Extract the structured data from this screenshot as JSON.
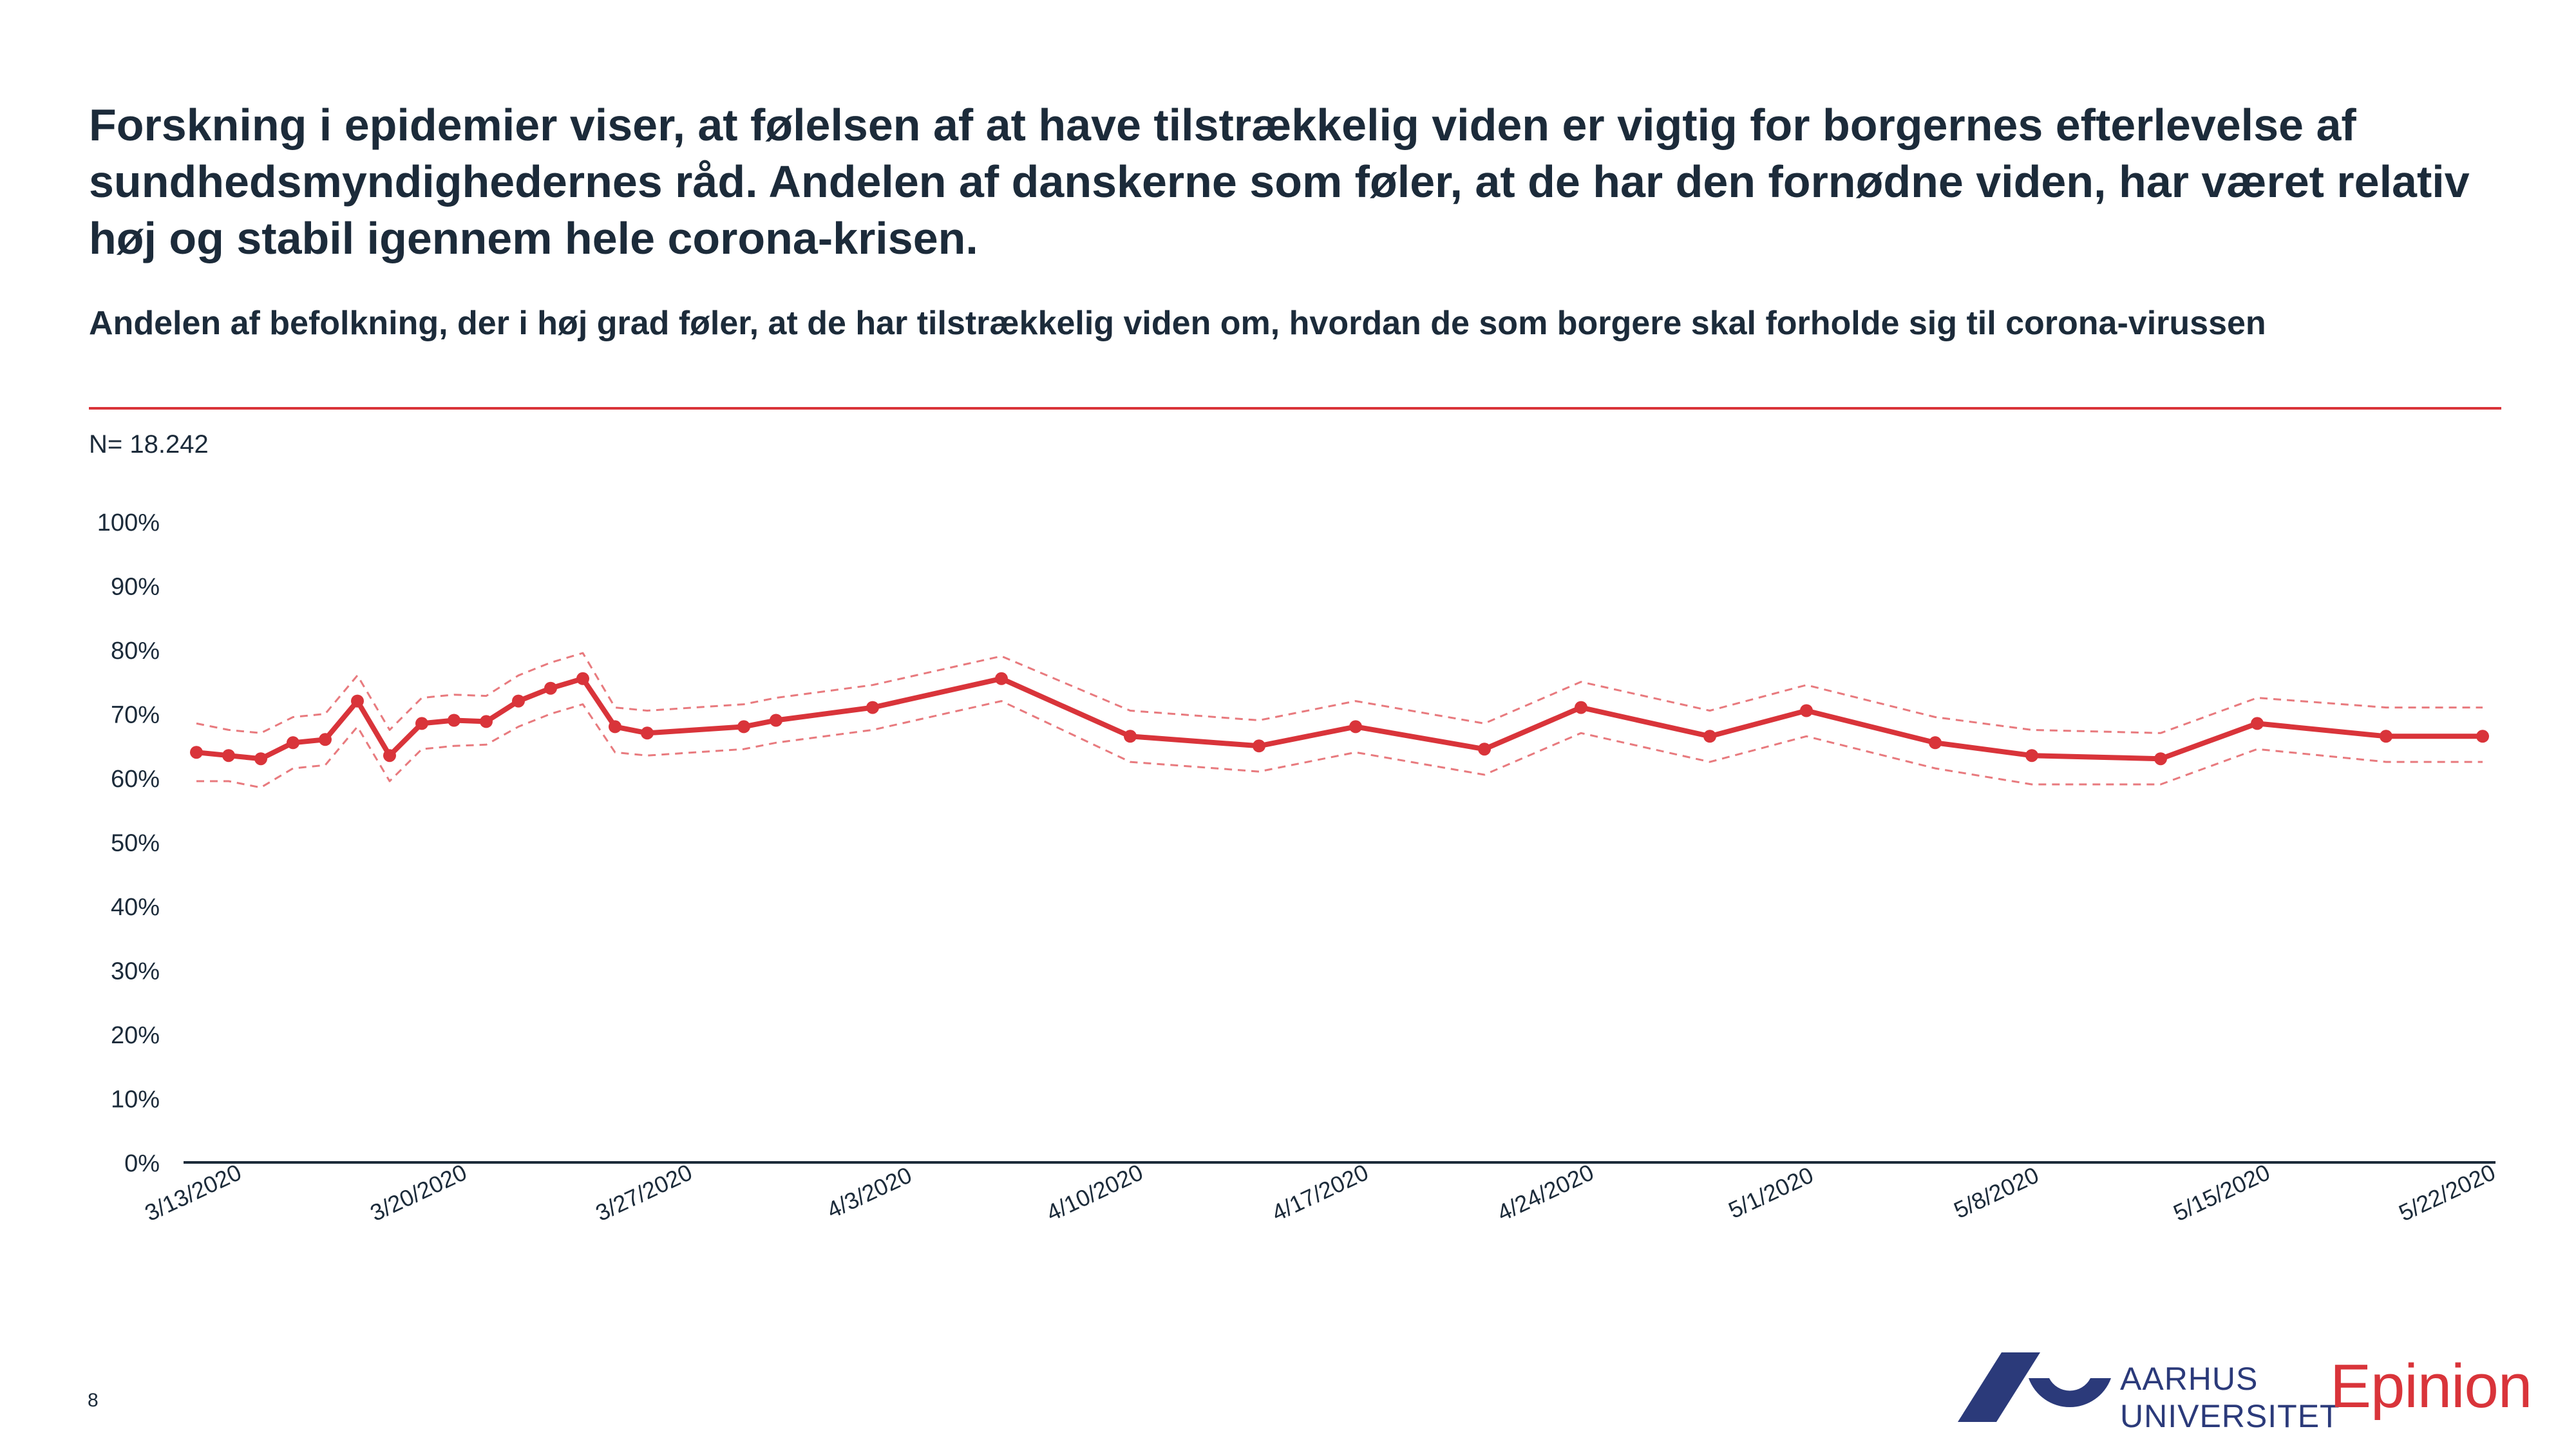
{
  "header": {
    "headline": "Forskning i epidemier viser, at følelsen af at have tilstrækkelig viden er vigtig for borgernes efterlevelse af sundhedsmyndighedernes råd. Andelen af danskerne som føler, at de har den fornødne viden, har været relativ høj og stabil igennem hele corona-krisen.",
    "subtitle": "Andelen af befolkning, der i høj grad føler, at de har tilstrækkelig viden om, hvordan de som borgere skal forholde sig til corona-virussen",
    "sample_size": "N= 18.242"
  },
  "footer": {
    "page_number": "8",
    "university_line1": "AARHUS",
    "university_line2": "UNIVERSITET",
    "brand": "Epinion"
  },
  "colors": {
    "accent": "#d9343a",
    "text": "#1c2b3a",
    "au_blue": "#2b3a7a"
  },
  "chart_data": {
    "type": "line",
    "title": "",
    "xlabel": "",
    "ylabel": "",
    "ylim": [
      0,
      100
    ],
    "y_ticks": [
      "0%",
      "10%",
      "20%",
      "30%",
      "40%",
      "50%",
      "60%",
      "70%",
      "80%",
      "90%",
      "100%"
    ],
    "x_ticks": [
      "3/13/2020",
      "3/20/2020",
      "3/27/2020",
      "4/3/2020",
      "4/10/2020",
      "4/17/2020",
      "4/24/2020",
      "5/1/2020",
      "5/8/2020",
      "5/15/2020",
      "5/22/2020"
    ],
    "x_range": [
      "2020-03-13",
      "2020-05-23"
    ],
    "grid": false,
    "x": [
      "2020-03-13",
      "2020-03-14",
      "2020-03-15",
      "2020-03-16",
      "2020-03-17",
      "2020-03-18",
      "2020-03-19",
      "2020-03-20",
      "2020-03-21",
      "2020-03-22",
      "2020-03-23",
      "2020-03-24",
      "2020-03-25",
      "2020-03-26",
      "2020-03-27",
      "2020-03-30",
      "2020-03-31",
      "2020-04-03",
      "2020-04-07",
      "2020-04-11",
      "2020-04-15",
      "2020-04-18",
      "2020-04-22",
      "2020-04-25",
      "2020-04-29",
      "2020-05-02",
      "2020-05-06",
      "2020-05-09",
      "2020-05-13",
      "2020-05-16",
      "2020-05-20",
      "2020-05-23"
    ],
    "series": [
      {
        "values": [
          64,
          63.5,
          63,
          65.5,
          66,
          72,
          63.5,
          68.5,
          69,
          68.8,
          72,
          74,
          75.5,
          68,
          67,
          68,
          69,
          71,
          75.5,
          66.5,
          65,
          68,
          64.5,
          71,
          66.5,
          70.5,
          65.5,
          63.5,
          63,
          68.5,
          66.5,
          66.5
        ],
        "style": "solid-with-markers",
        "color": "#d9343a"
      },
      {
        "values": [
          68.5,
          67.5,
          67,
          69.5,
          70,
          76,
          67.5,
          72.5,
          73,
          72.8,
          76,
          78,
          79.5,
          71,
          70.5,
          71.5,
          72.5,
          74.5,
          79,
          70.5,
          69,
          72,
          68.5,
          75,
          70.5,
          74.5,
          69.5,
          67.5,
          67,
          72.5,
          71,
          71
        ],
        "style": "dashed",
        "color": "#e87a7e"
      },
      {
        "values": [
          59.5,
          59.5,
          58.5,
          61.5,
          62,
          68,
          59.5,
          64.5,
          65,
          65.2,
          68,
          70,
          71.5,
          64,
          63.5,
          64.5,
          65.5,
          67.5,
          72,
          62.5,
          61,
          64,
          60.5,
          67,
          62.5,
          66.5,
          61.5,
          59,
          59,
          64.5,
          62.5,
          62.5
        ],
        "style": "dashed",
        "color": "#e87a7e"
      }
    ]
  }
}
